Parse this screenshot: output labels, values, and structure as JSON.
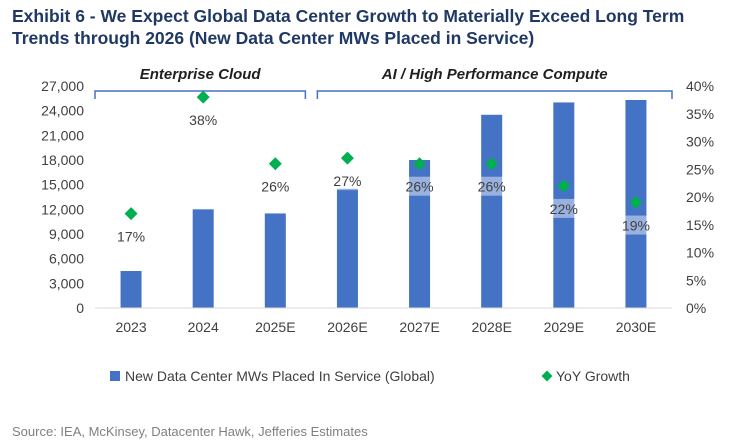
{
  "title": "Exhibit 6 - We Expect Global Data Center Growth to Materially Exceed Long Term Trends through 2026 (New Data Center MWs Placed in Service)",
  "source": "Source: IEA, McKinsey, Datacenter Hawk, Jefferies Estimates",
  "colors": {
    "bar": "#4472c4",
    "marker": "#00b050",
    "title": "#1f3864",
    "bracket": "#4472c4",
    "text": "#404040"
  },
  "chart_data": {
    "type": "bar",
    "categories": [
      "2023",
      "2024",
      "2025E",
      "2026E",
      "2027E",
      "2028E",
      "2029E",
      "2030E"
    ],
    "series": [
      {
        "name": "New Data Center MWs Placed In Service (Global)",
        "type": "bar",
        "axis": "left",
        "values": [
          4500,
          12000,
          11500,
          14500,
          18000,
          23500,
          25000,
          25300
        ]
      },
      {
        "name": "YoY Growth",
        "type": "scatter",
        "axis": "right",
        "values": [
          0.17,
          0.38,
          0.26,
          0.27,
          0.26,
          0.26,
          0.22,
          0.19
        ],
        "labels": [
          "17%",
          "38%",
          "26%",
          "27%",
          "26%",
          "26%",
          "22%",
          "19%"
        ]
      }
    ],
    "y_left": {
      "min": 0,
      "max": 27000,
      "ticks": [
        0,
        3000,
        6000,
        9000,
        12000,
        15000,
        18000,
        21000,
        24000,
        27000
      ],
      "tick_labels": [
        "0",
        "3,000",
        "6,000",
        "9,000",
        "12,000",
        "15,000",
        "18,000",
        "21,000",
        "24,000",
        "27,000"
      ]
    },
    "y_right": {
      "min": 0,
      "max": 0.4,
      "ticks": [
        0,
        0.05,
        0.1,
        0.15,
        0.2,
        0.25,
        0.3,
        0.35,
        0.4
      ],
      "tick_labels": [
        "0%",
        "5%",
        "10%",
        "15%",
        "20%",
        "25%",
        "30%",
        "35%",
        "40%"
      ]
    },
    "brackets": [
      {
        "label": "Enterprise Cloud",
        "from": 0,
        "to": 2
      },
      {
        "label": "AI / High Performance Compute",
        "from": 3,
        "to": 7
      }
    ],
    "legend_position": "bottom"
  }
}
